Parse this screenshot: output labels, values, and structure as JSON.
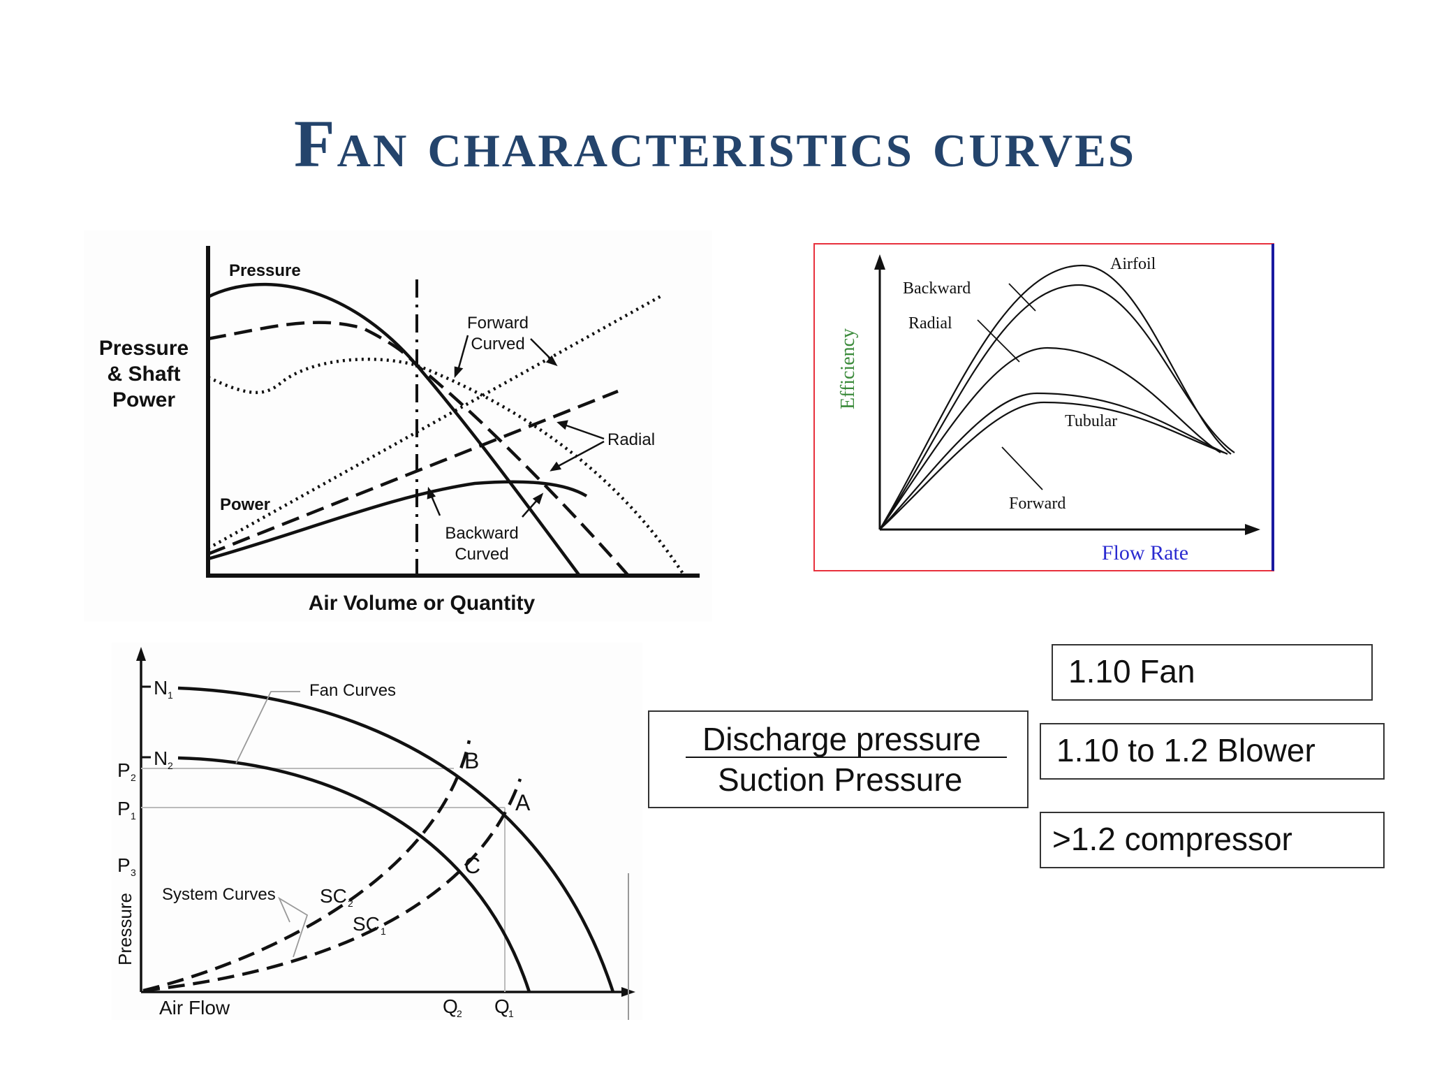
{
  "slide": {
    "title": "Fan characteristics curves"
  },
  "fig1": {
    "y_axis_label": [
      "Pressure",
      "& Shaft",
      "Power"
    ],
    "x_axis_label": "Air Volume or Quantity",
    "pressure_label": "Pressure",
    "power_label": "Power",
    "forward_label": [
      "Forward",
      "Curved"
    ],
    "radial_label": "Radial",
    "backward_label": [
      "Backward",
      "Curved"
    ]
  },
  "fig2": {
    "y_axis_label": "Efficiency",
    "x_axis_label": "Flow Rate",
    "curves": [
      "Airfoil",
      "Backward",
      "Radial",
      "Tubular",
      "Forward"
    ],
    "colors": {
      "border": "#e8303c",
      "right_edge": "#1a1aa0",
      "y_label": "#3a8a3a",
      "x_label": "#2a2ad0"
    }
  },
  "fig3": {
    "y_axis_label": "Pressure",
    "x_axis_label": "Air Flow",
    "fan_curves_label": "Fan Curves",
    "system_curves_label": "System Curves",
    "speed_labels": [
      "N",
      "N"
    ],
    "speed_subscripts": [
      "1",
      "2"
    ],
    "pressure_labels": [
      "P",
      "P",
      "P"
    ],
    "pressure_subscripts": [
      "2",
      "1",
      "3"
    ],
    "flow_labels": [
      "Q",
      "Q"
    ],
    "flow_subscripts": [
      "2",
      "1"
    ],
    "point_labels": [
      "B",
      "A",
      "C"
    ],
    "system_curve_labels": [
      "SC",
      "SC"
    ],
    "system_curve_subscripts": [
      "2",
      "1"
    ]
  },
  "classification": {
    "ratio_numerator": "Discharge pressure",
    "ratio_denominator": "Suction Pressure",
    "fan": "1.10 Fan",
    "blower": "1.10 to 1.2  Blower",
    "compressor": ">1.2 compressor"
  }
}
